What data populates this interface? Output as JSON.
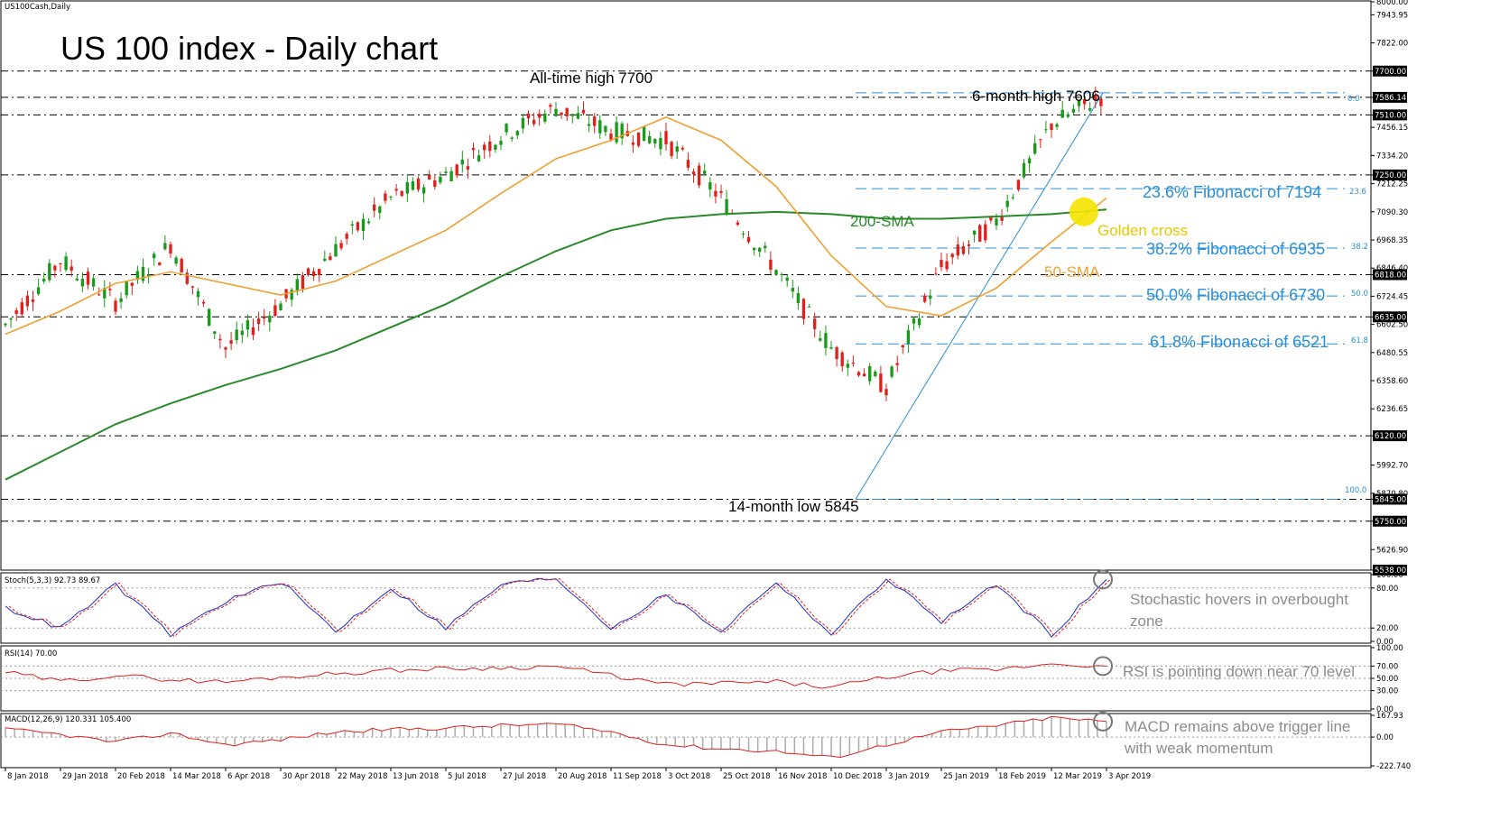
{
  "symbol_label": "US100Cash,Daily",
  "title": "US 100 index - Daily chart",
  "chart_data": [
    {
      "type": "line",
      "panel": "price",
      "title": "US 100 index - Daily chart",
      "x": [
        "8 Jan 2018",
        "29 Jan 2018",
        "20 Feb 2018",
        "14 Mar 2018",
        "6 Apr 2018",
        "30 Apr 2018",
        "22 May 2018",
        "13 Jun 2018",
        "5 Jul 2018",
        "27 Jul 2018",
        "20 Aug 2018",
        "11 Sep 2018",
        "3 Oct 2018",
        "25 Oct 2018",
        "16 Nov 2018",
        "10 Dec 2018",
        "3 Jan 2019",
        "25 Jan 2019",
        "18 Feb 2019",
        "12 Mar 2019",
        "3 Apr 2019"
      ],
      "series": [
        {
          "name": "price",
          "values": [
            6600,
            6880,
            6700,
            6950,
            6500,
            6690,
            6930,
            7150,
            7250,
            7420,
            7540,
            7440,
            7400,
            7150,
            6840,
            6500,
            6330,
            6850,
            7050,
            7470,
            7600
          ]
        },
        {
          "name": "50-SMA",
          "values": [
            6560,
            6660,
            6780,
            6830,
            6780,
            6730,
            6790,
            6900,
            7010,
            7170,
            7320,
            7400,
            7500,
            7400,
            7200,
            6900,
            6680,
            6640,
            6760,
            6960,
            7150
          ]
        },
        {
          "name": "200-SMA",
          "values": [
            5930,
            6050,
            6170,
            6260,
            6340,
            6410,
            6490,
            6590,
            6690,
            6810,
            6920,
            7010,
            7060,
            7080,
            7090,
            7080,
            7060,
            7060,
            7070,
            7080,
            7100
          ]
        }
      ],
      "ylim": [
        5538,
        8000
      ],
      "y_ticks": [
        "8000.00",
        "7943.95",
        "7822.00",
        "7700.00",
        "7586.14",
        "7510.00",
        "7456.15",
        "7334.20",
        "7250.00",
        "7212.25",
        "7090.30",
        "6968.35",
        "6846.40",
        "6818.00",
        "6724.45",
        "6635.00",
        "6602.50",
        "6480.55",
        "6358.60",
        "6236.65",
        "6120.00",
        "5992.70",
        "5870.80",
        "5845.00",
        "5750.00",
        "5626.90",
        "5538.00"
      ],
      "highlighted_levels": [
        "7700.00",
        "7586.14",
        "7510.00",
        "7250.00",
        "6818.00",
        "6635.00",
        "6120.00",
        "5845.00",
        "5750.00",
        "5538.00"
      ],
      "fibonacci": {
        "levels": [
          "0.0",
          "23.6",
          "38.2",
          "50.0",
          "61.8",
          "100.0"
        ],
        "labels": [
          "23.6% Fibonacci of 7194",
          "38.2% Fibonacci of 6935",
          "50.0% Fibonacci of 6730",
          "61.8% Fibonacci of 6521"
        ]
      },
      "annotations": {
        "ath": "All-time high 7700",
        "six_month_high": "6-month high 7606",
        "low": "14-month low 5845",
        "sma200": "200-SMA",
        "sma50": "50-SMA",
        "golden_cross": "Golden cross"
      },
      "colors": {
        "up": "#1a9a1a",
        "down": "#e0201c",
        "sma50": "#f0a030",
        "sma200": "#2a8a2a",
        "fib": "#2a8fd6",
        "golden": "#f5e400"
      }
    },
    {
      "type": "line",
      "panel": "stochastic",
      "title": "Stoch(5,3,3) 92.73 89.67",
      "series": [
        {
          "values": [
            50,
            20,
            85,
            10,
            60,
            90,
            15,
            80,
            20,
            85,
            95,
            20,
            70,
            15,
            90,
            10,
            95,
            30,
            85,
            10,
            92.73
          ]
        }
      ],
      "ylim": [
        0,
        100
      ],
      "y_ticks": [
        "100.00",
        "80.00",
        "20.00",
        "0.00"
      ],
      "note": "Stochastic hovers in overbought zone"
    },
    {
      "type": "line",
      "panel": "rsi",
      "title": "RSI(14) 70.00",
      "series": [
        {
          "values": [
            60,
            45,
            55,
            48,
            44,
            52,
            58,
            63,
            66,
            67,
            70,
            55,
            40,
            42,
            44,
            35,
            52,
            62,
            64,
            74,
            70
          ]
        }
      ],
      "ylim": [
        0,
        100
      ],
      "y_ticks": [
        "100.00",
        "70.00",
        "50.00",
        "30.00",
        "0.00"
      ],
      "note": "RSI is pointing down near 70 level"
    },
    {
      "type": "line",
      "panel": "macd",
      "title": "MACD(12,26,9) 120.331 105.400",
      "series": [
        {
          "values": [
            60,
            20,
            -40,
            30,
            -60,
            -20,
            40,
            60,
            70,
            90,
            100,
            40,
            -60,
            -90,
            -110,
            -160,
            -60,
            40,
            90,
            150,
            120.331
          ]
        }
      ],
      "ylim": [
        -222.74,
        167.93
      ],
      "y_ticks": [
        "167.93",
        "0.00",
        "-222.740"
      ],
      "note": "MACD remains above trigger line with weak momentum"
    }
  ],
  "notes_l2": [
    "Stochastic hovers in overbought",
    "zone"
  ],
  "notes_l4": [
    "MACD remains above trigger line",
    "with weak momentum"
  ]
}
